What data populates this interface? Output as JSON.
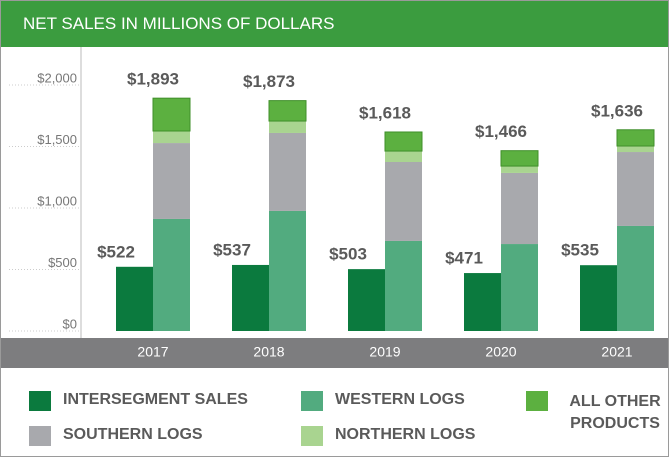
{
  "chart_data": {
    "type": "bar",
    "title": "NET SALES IN MILLIONS OF DOLLARS",
    "categories": [
      "2017",
      "2018",
      "2019",
      "2020",
      "2021"
    ],
    "series": [
      {
        "name": "INTERSEGMENT SALES",
        "color": "#0b7a3e",
        "stack": "left",
        "values": [
          522,
          537,
          503,
          471,
          535
        ],
        "value_labels": [
          "$522",
          "$537",
          "$503",
          "$471",
          "$535"
        ]
      },
      {
        "name": "WESTERN LOGS",
        "color": "#52ab7f",
        "stack": "right",
        "values": [
          911,
          976,
          732,
          707,
          854
        ]
      },
      {
        "name": "SOUTHERN LOGS",
        "color": "#a8a9ad",
        "stack": "right",
        "values": [
          617,
          634,
          642,
          578,
          601
        ]
      },
      {
        "name": "NORTHERN LOGS",
        "color": "#a9d490",
        "stack": "right",
        "values": [
          98,
          97,
          89,
          56,
          49
        ]
      },
      {
        "name": "ALL OTHER PRODUCTS",
        "color": "#5cb040",
        "stack": "right",
        "values": [
          267,
          166,
          155,
          125,
          132
        ]
      }
    ],
    "totals": [
      1893,
      1873,
      1618,
      1466,
      1636
    ],
    "total_labels": [
      "$1,893",
      "$1,873",
      "$1,618",
      "$1,466",
      "$1,636"
    ],
    "ylim": [
      0,
      2000
    ],
    "yticks": [
      {
        "value": 0,
        "label": "$0"
      },
      {
        "value": 500,
        "label": "$500"
      },
      {
        "value": 1000,
        "label": "$1,000"
      },
      {
        "value": 1500,
        "label": "$1,500"
      },
      {
        "value": 2000,
        "label": "$2,000"
      }
    ]
  }
}
